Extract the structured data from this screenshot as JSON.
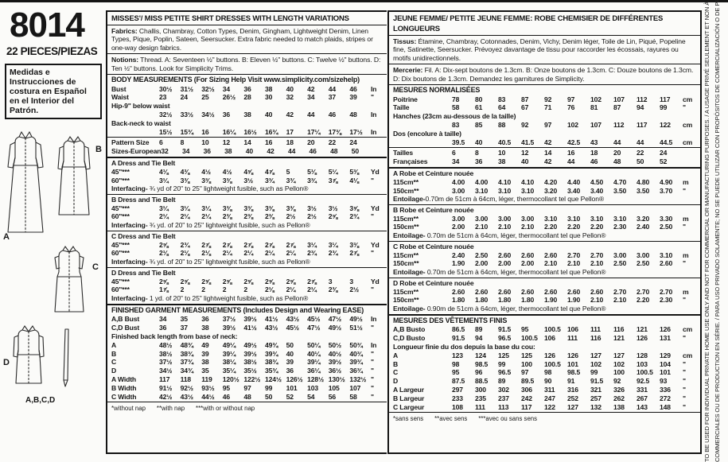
{
  "left_panel": {
    "pattern_number": "8014",
    "pieces_line": "22 PIECES/PIEZAS",
    "spanish_note": "Medidas e Instrucciones de costura en Español en el Interior del Patrón.",
    "view_labels": {
      "a": "A",
      "b": "B",
      "c": "C",
      "d": "D",
      "belt_caption": "A,B,C,D"
    }
  },
  "english": {
    "title": "MISSES'/ MISS PETITE SHIRT DRESSES WITH LENGTH VARIATIONS",
    "fabrics_label": "Fabrics:",
    "fabrics_text": " Challis, Chambray, Cotton Types, Denim, Gingham, Lightweight Denim, Linen Types, Pique, Poplin, Sateen, Seersucker. Extra fabric needed to match plaids, stripes or one-way design fabrics.",
    "notions_label": "Notions:",
    "notions_text": " Thread. A: Seventeen ½\" buttons. B: Eleven ½\" buttons. C: Twelve ½\" buttons. D: Ten ½\" buttons. Look for Simplicity Trims.",
    "body_heading": "BODY MEASUREMENTS (For Sizing Help Visit www.simplicity.com/sizehelp)",
    "body_rows": [
      {
        "label": "Bust",
        "values": [
          "30½",
          "31½",
          "32½",
          "34",
          "36",
          "38",
          "40",
          "42",
          "44",
          "46"
        ],
        "unit": "In"
      },
      {
        "label": "Waist",
        "values": [
          "23",
          "24",
          "25",
          "26½",
          "28",
          "30",
          "32",
          "34",
          "37",
          "39"
        ],
        "unit": "\""
      },
      {
        "label": "Hip-9\" below waist",
        "own_line": true,
        "values": [
          "32½",
          "33½",
          "34½",
          "36",
          "38",
          "40",
          "42",
          "44",
          "46",
          "48"
        ],
        "unit": "In"
      },
      {
        "label": "Back-neck to waist",
        "own_line": true,
        "values": [
          "15½",
          "15¾",
          "16",
          "16¼",
          "16½",
          "16¾",
          "17",
          "17¼",
          "17⅜",
          "17½"
        ],
        "unit": "In"
      }
    ],
    "size_rows": [
      {
        "label": "Pattern Size",
        "values": [
          "6",
          "8",
          "10",
          "12",
          "14",
          "16",
          "18",
          "20",
          "22",
          "24"
        ],
        "unit": ""
      },
      {
        "label": "Sizes-European",
        "values": [
          "32",
          "34",
          "36",
          "38",
          "40",
          "42",
          "44",
          "46",
          "48",
          "50"
        ],
        "unit": ""
      }
    ],
    "yardage_sections": [
      {
        "title": "A Dress and Tie Belt",
        "rows": [
          {
            "label": "45\"***",
            "values": [
              "4⅛",
              "4⅜",
              "4½",
              "4½",
              "4⅝",
              "4⅞",
              "5",
              "5⅛",
              "5¼",
              "5⅜"
            ],
            "unit": "Yd"
          },
          {
            "label": "60\"***",
            "values": [
              "3¼",
              "3⅜",
              "3⅜",
              "3⅜",
              "3½",
              "3¾",
              "3¾",
              "3¾",
              "3⅞",
              "4⅛"
            ],
            "unit": "\""
          }
        ],
        "note_label": "Interfacing-",
        "note_text": " ¾ yd of 20\" to 25\" lightweight fusible, such as Pellon®"
      },
      {
        "title": "B Dress and Tie Belt",
        "rows": [
          {
            "label": "45\"***",
            "values": [
              "3¼",
              "3¼",
              "3¼",
              "3⅜",
              "3⅜",
              "3⅜",
              "3⅜",
              "3½",
              "3½",
              "3⅝"
            ],
            "unit": "Yd"
          },
          {
            "label": "60\"***",
            "values": [
              "2¼",
              "2¼",
              "2¼",
              "2⅜",
              "2⅜",
              "2⅜",
              "2½",
              "2½",
              "2⅝",
              "2¾"
            ],
            "unit": "\""
          }
        ],
        "note_label": "Interfacing-",
        "note_text": " ¾ yd. of 20\" to 25\" lightweight fusible, such as Pellon®"
      },
      {
        "title": "C Dress and Tie Belt",
        "rows": [
          {
            "label": "45\"***",
            "values": [
              "2⅝",
              "2¾",
              "2⅞",
              "2⅞",
              "2⅞",
              "2⅞",
              "2⅞",
              "3¼",
              "3¼",
              "3⅜"
            ],
            "unit": "Yd"
          },
          {
            "label": "60\"***",
            "values": [
              "2⅛",
              "2⅛",
              "2⅛",
              "2¼",
              "2¼",
              "2¼",
              "2¼",
              "2¾",
              "2¾",
              "2⅞"
            ],
            "unit": "\""
          }
        ],
        "note_label": "Interfacing-",
        "note_text": " ¾ yd. of 20\" to 25\" lightweight fusible, such as Pellon®"
      },
      {
        "title": "D Dress and Tie Belt",
        "rows": [
          {
            "label": "45\"***",
            "values": [
              "2⅝",
              "2⅝",
              "2⅝",
              "2⅝",
              "2⅝",
              "2⅝",
              "2⅝",
              "2⅞",
              "3",
              "3"
            ],
            "unit": "Yd"
          },
          {
            "label": "60\"***",
            "values": [
              "1⅞",
              "2",
              "2",
              "2",
              "2",
              "2⅛",
              "2¼",
              "2¼",
              "2⅜",
              "2½"
            ],
            "unit": "\""
          }
        ],
        "note_label": "Interfacing-",
        "note_text": " 1 yd. of 20\" to 25\" lightweight fusible, such as Pellon®"
      }
    ],
    "finished_heading": "FINISHED GARMENT MEASUREMENTS (Includes Design and Wearing EASE)",
    "finished_rows": [
      {
        "label": "A,B Bust",
        "values": [
          "34",
          "35",
          "36",
          "37½",
          "39½",
          "41½",
          "43½",
          "45½",
          "47½",
          "49½"
        ],
        "unit": "In"
      },
      {
        "label": "C,D Bust",
        "values": [
          "36",
          "37",
          "38",
          "39½",
          "41½",
          "43½",
          "45½",
          "47½",
          "49½",
          "51½"
        ],
        "unit": "\""
      }
    ],
    "finished_subheading": "Finished back length from base of neck:",
    "finished_sub_rows": [
      {
        "label": "A",
        "values": [
          "48½",
          "48¾",
          "49",
          "49¼",
          "49½",
          "49¾",
          "50",
          "50¼",
          "50½",
          "50¾"
        ],
        "unit": "In"
      },
      {
        "label": "B",
        "values": [
          "38½",
          "38¾",
          "39",
          "39¼",
          "39½",
          "39¾",
          "40",
          "40¼",
          "40½",
          "40¾"
        ],
        "unit": "\""
      },
      {
        "label": "C",
        "values": [
          "37½",
          "37¾",
          "38",
          "38¼",
          "38½",
          "38¾",
          "39",
          "39¼",
          "39½",
          "39¾"
        ],
        "unit": "\""
      },
      {
        "label": "D",
        "values": [
          "34½",
          "34¾",
          "35",
          "35¼",
          "35½",
          "35¾",
          "36",
          "36¼",
          "36½",
          "36¾"
        ],
        "unit": "\""
      },
      {
        "label": "A Width",
        "values": [
          "117",
          "118",
          "119",
          "120½",
          "122½",
          "124½",
          "126½",
          "128½",
          "130½",
          "132½"
        ],
        "unit": "\""
      },
      {
        "label": "B Width",
        "values": [
          "91½",
          "92½",
          "93½",
          "95",
          "97",
          "99",
          "101",
          "103",
          "105",
          "107"
        ],
        "unit": "\""
      },
      {
        "label": "C Width",
        "values": [
          "42½",
          "43½",
          "44½",
          "46",
          "48",
          "50",
          "52",
          "54",
          "56",
          "58"
        ],
        "unit": "\""
      }
    ],
    "footnotes": [
      "*without nap",
      "**with nap",
      "***with or without nap"
    ]
  },
  "french": {
    "title": "JEUNE FEMME/ PETITE JEUNE FEMME: ROBE CHEMISIER DE DIFFÉRENTES LONGUEURS",
    "fabrics_label": "Tissus:",
    "fabrics_text": " Étamine, Chambray, Cotonnades, Denim, Vichy, Denim léger, Toile de Lin, Piqué, Popeline fine, Satinette, Seersucker. Prévoyez davantage de tissu pour raccorder les écossais, rayures ou motifs unidirectionnels.",
    "notions_label": "Mercerie:",
    "notions_text": " Fil. A: Dix-sept boutons de 1.3cm. B: Onze boutons de 1.3cm. C: Douze boutons de 1.3cm. D: Dix boutons de 1.3cm. Demandez les garnitures de Simplicity.",
    "body_heading": "MESURES NORMALISÉES",
    "body_rows": [
      {
        "label": "Poitrine",
        "values": [
          "78",
          "80",
          "83",
          "87",
          "92",
          "97",
          "102",
          "107",
          "112",
          "117"
        ],
        "unit": "cm"
      },
      {
        "label": "Taille",
        "values": [
          "58",
          "61",
          "64",
          "67",
          "71",
          "76",
          "81",
          "87",
          "94",
          "99"
        ],
        "unit": "\""
      },
      {
        "label": "Hanches (23cm au-dessous de la taille)",
        "own_line": true,
        "values": [
          "83",
          "85",
          "88",
          "92",
          "97",
          "102",
          "107",
          "112",
          "117",
          "122"
        ],
        "unit": "cm"
      },
      {
        "label": "Dos (encolure à taille)",
        "own_line": true,
        "values": [
          "39.5",
          "40",
          "40.5",
          "41.5",
          "42",
          "42.5",
          "43",
          "44",
          "44",
          "44.5"
        ],
        "unit": "cm"
      }
    ],
    "size_rows": [
      {
        "label": "Tailles",
        "values": [
          "6",
          "8",
          "10",
          "12",
          "14",
          "16",
          "18",
          "20",
          "22",
          "24"
        ],
        "unit": ""
      },
      {
        "label": "Françaises",
        "values": [
          "34",
          "36",
          "38",
          "40",
          "42",
          "44",
          "46",
          "48",
          "50",
          "52"
        ],
        "unit": ""
      }
    ],
    "yardage_sections": [
      {
        "title": "A Robe et Ceinture nouée",
        "rows": [
          {
            "label": "115cm**",
            "values": [
              "4.00",
              "4.00",
              "4.10",
              "4.10",
              "4.20",
              "4.40",
              "4.50",
              "4.70",
              "4.80",
              "4.90"
            ],
            "unit": "m"
          },
          {
            "label": "150cm**",
            "values": [
              "3.00",
              "3.10",
              "3.10",
              "3.10",
              "3.20",
              "3.40",
              "3.40",
              "3.50",
              "3.50",
              "3.70"
            ],
            "unit": "\""
          }
        ],
        "note_label": "Entoilage-",
        "note_text": "0.70m de 51cm à 64cm, léger, thermocollant tel que Pellon®"
      },
      {
        "title": "B Robe et Ceinture nouée",
        "rows": [
          {
            "label": "115cm**",
            "values": [
              "3.00",
              "3.00",
              "3.00",
              "3.00",
              "3.10",
              "3.10",
              "3.10",
              "3.10",
              "3.20",
              "3.30"
            ],
            "unit": "m"
          },
          {
            "label": "150cm**",
            "values": [
              "2.00",
              "2.10",
              "2.10",
              "2.10",
              "2.20",
              "2.20",
              "2.20",
              "2.30",
              "2.40",
              "2.50"
            ],
            "unit": "\""
          }
        ],
        "note_label": "Entoilage-",
        "note_text": " 0.70m de 51cm à 64cm, léger, thermocollant tel que Pellon®"
      },
      {
        "title": "C Robe et Ceinture nouée",
        "rows": [
          {
            "label": "115cm**",
            "values": [
              "2.40",
              "2.50",
              "2.60",
              "2.60",
              "2.60",
              "2.70",
              "2.70",
              "3.00",
              "3.00",
              "3.10"
            ],
            "unit": "m"
          },
          {
            "label": "150cm**",
            "values": [
              "1.90",
              "2.00",
              "2.00",
              "2.00",
              "2.10",
              "2.10",
              "2.10",
              "2.50",
              "2.50",
              "2.60"
            ],
            "unit": "\""
          }
        ],
        "note_label": "Entoilage-",
        "note_text": " 0.70m de 51cm à 64cm, léger, thermocollant tel que Pellon®"
      },
      {
        "title": "D Robe et Ceinture nouée",
        "rows": [
          {
            "label": "115cm**",
            "values": [
              "2.60",
              "2.60",
              "2.60",
              "2.60",
              "2.60",
              "2.60",
              "2.60",
              "2.70",
              "2.70",
              "2.70"
            ],
            "unit": "m"
          },
          {
            "label": "150cm**",
            "values": [
              "1.80",
              "1.80",
              "1.80",
              "1.80",
              "1.90",
              "1.90",
              "2.10",
              "2.10",
              "2.20",
              "2.30"
            ],
            "unit": "\""
          }
        ],
        "note_label": "Entoilage-",
        "note_text": " 0.90m de 51cm à 64cm, léger, thermocollant tel que Pellon®"
      }
    ],
    "finished_heading": "MESURES DES VÊTEMENTS FINIS",
    "finished_rows": [
      {
        "label": "A,B Busto",
        "values": [
          "86.5",
          "89",
          "91.5",
          "95",
          "100.5",
          "106",
          "111",
          "116",
          "121",
          "126"
        ],
        "unit": "cm"
      },
      {
        "label": "C,D Busto",
        "values": [
          "91.5",
          "94",
          "96.5",
          "100.5",
          "106",
          "111",
          "116",
          "121",
          "126",
          "131"
        ],
        "unit": "\""
      }
    ],
    "finished_subheading": "Longueur finie du dos depuis la base du cou:",
    "finished_sub_rows": [
      {
        "label": "A",
        "values": [
          "123",
          "124",
          "125",
          "125",
          "126",
          "126",
          "127",
          "127",
          "128",
          "129"
        ],
        "unit": "cm"
      },
      {
        "label": "B",
        "values": [
          "98",
          "98.5",
          "99",
          "100",
          "100.5",
          "101",
          "102",
          "102",
          "103",
          "104"
        ],
        "unit": "\""
      },
      {
        "label": "C",
        "values": [
          "95",
          "96",
          "96.5",
          "97",
          "98",
          "98.5",
          "99",
          "100",
          "100.5",
          "101"
        ],
        "unit": "\""
      },
      {
        "label": "D",
        "values": [
          "87.5",
          "88.5",
          "89",
          "89.5",
          "90",
          "91",
          "91.5",
          "92",
          "92.5",
          "93"
        ],
        "unit": "\""
      },
      {
        "label": "A Largeur",
        "values": [
          "297",
          "300",
          "302",
          "306",
          "311",
          "316",
          "321",
          "326",
          "331",
          "336"
        ],
        "unit": "\""
      },
      {
        "label": "B Largeur",
        "values": [
          "233",
          "235",
          "237",
          "242",
          "247",
          "252",
          "257",
          "262",
          "267",
          "272"
        ],
        "unit": "\""
      },
      {
        "label": "C Largeur",
        "values": [
          "108",
          "111",
          "113",
          "117",
          "122",
          "127",
          "132",
          "138",
          "143",
          "148"
        ],
        "unit": "\""
      }
    ],
    "footnotes": [
      "*sans sens",
      "**avec sens",
      "***avec ou sans sens"
    ]
  },
  "side_strip": {
    "line1": "TO BE USED FOR INDIVIDUAL PRIVATE HOME USE ONLY AND NOT FOR COMMERCIAL OR MANUFACTURING PURPOSES. / A USAGE PRIVÉ SEULEMENT ET NON À DES FINS",
    "line2": "COMMERCIALES OU DE PRODUCTION EN SÉRIE. / PARA USO PRIVADO SOLAMENTE; NO SE PUEDE UTILIZAR CON PROPÓSITOS DE COMERCIALIZACIÓN O DE PRODUCCIÓN EN SERIE."
  }
}
